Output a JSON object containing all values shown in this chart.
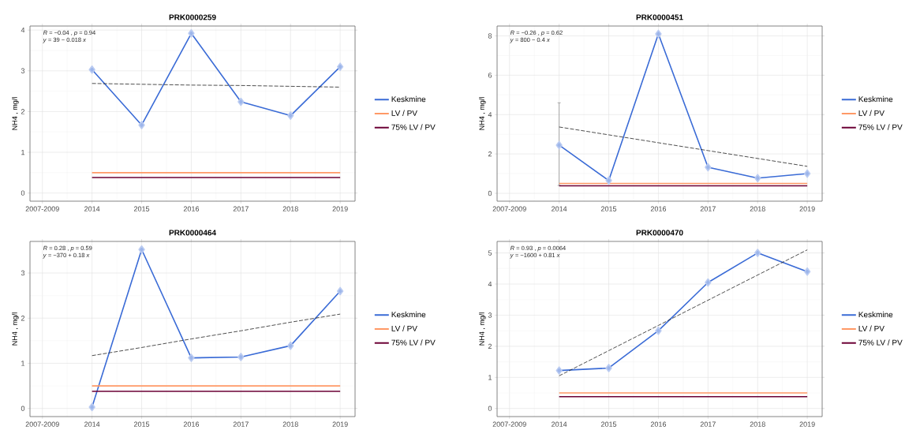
{
  "chart_data": [
    {
      "type": "line",
      "title": "PRK0000259",
      "ylabel": "NH4 , mg/l",
      "categories": [
        "2007-2009",
        "2014",
        "2015",
        "2016",
        "2017",
        "2018",
        "2019"
      ],
      "ylim": [
        -0.2,
        4.1
      ],
      "yticks": [
        0,
        1,
        2,
        3,
        4
      ],
      "grid": true,
      "legend": "right",
      "annotations": [
        "*R* = −0.04 , *p* = 0.94",
        "*y* = 39 − 0.018 *x*"
      ],
      "series": [
        {
          "name": "Keskmine",
          "color": "#3a6bd6",
          "marker": "diamond",
          "values": [
            null,
            3.03,
            1.67,
            3.92,
            2.24,
            1.9,
            3.1
          ]
        },
        {
          "name": "LV / PV",
          "color": "#ff9966",
          "values": [
            null,
            0.5,
            0.5,
            0.5,
            0.5,
            0.5,
            0.5
          ]
        },
        {
          "name": "75% LV / PV",
          "color": "#6b0035",
          "values": [
            null,
            0.38,
            0.38,
            0.38,
            0.38,
            0.38,
            0.38
          ]
        },
        {
          "color": "#222222",
          "line_style": "dashed",
          "values": [
            null,
            2.69,
            2.67,
            2.65,
            2.64,
            2.62,
            2.6
          ]
        }
      ]
    },
    {
      "type": "line",
      "title": "PRK0000451",
      "ylabel": "NH4 , mg/l",
      "categories": [
        "2007-2009",
        "2014",
        "2015",
        "2016",
        "2017",
        "2018",
        "2019"
      ],
      "ylim": [
        -0.4,
        8.5
      ],
      "yticks": [
        0,
        2,
        4,
        6,
        8
      ],
      "grid": true,
      "legend": "right",
      "annotations": [
        "*R* = −0.26 , *p* = 0.62",
        "*y* = 800 − 0.4 *x*"
      ],
      "series": [
        {
          "name": "Keskmine",
          "color": "#3a6bd6",
          "marker": "diamond",
          "values": [
            null,
            2.45,
            0.65,
            8.1,
            1.32,
            0.77,
            1.0
          ],
          "errors": [
            null,
            [
              0.4,
              4.6
            ],
            null,
            null,
            null,
            null,
            null
          ]
        },
        {
          "name": "LV / PV",
          "color": "#ff9966",
          "values": [
            null,
            0.5,
            0.5,
            0.5,
            0.5,
            0.5,
            0.5
          ]
        },
        {
          "name": "75% LV / PV",
          "color": "#6b0035",
          "values": [
            null,
            0.38,
            0.38,
            0.38,
            0.38,
            0.38,
            0.38
          ]
        },
        {
          "color": "#222222",
          "line_style": "dashed",
          "values": [
            null,
            3.37,
            2.97,
            2.57,
            2.17,
            1.77,
            1.37
          ]
        }
      ]
    },
    {
      "type": "line",
      "title": "PRK0000464",
      "ylabel": "NH4 , mg/l",
      "categories": [
        "2007-2009",
        "2014",
        "2015",
        "2016",
        "2017",
        "2018",
        "2019"
      ],
      "ylim": [
        -0.18,
        3.7
      ],
      "yticks": [
        0,
        1,
        2,
        3
      ],
      "grid": true,
      "legend": "right",
      "annotations": [
        "*R* = 0.28 , *p* = 0.59",
        "*y* = −370 + 0.18 *x*"
      ],
      "series": [
        {
          "name": "Keskmine",
          "color": "#3a6bd6",
          "marker": "diamond",
          "values": [
            null,
            0.03,
            3.52,
            1.12,
            1.14,
            1.39,
            2.6
          ]
        },
        {
          "name": "LV / PV",
          "color": "#ff9966",
          "values": [
            null,
            0.5,
            0.5,
            0.5,
            0.5,
            0.5,
            0.5
          ]
        },
        {
          "name": "75% LV / PV",
          "color": "#6b0035",
          "values": [
            null,
            0.38,
            0.38,
            0.38,
            0.38,
            0.38,
            0.38
          ]
        },
        {
          "color": "#222222",
          "line_style": "dashed",
          "values": [
            null,
            1.17,
            1.35,
            1.54,
            1.72,
            1.91,
            2.09
          ]
        }
      ]
    },
    {
      "type": "line",
      "title": "PRK0000470",
      "ylabel": "NH4 , mg/l",
      "categories": [
        "2007-2009",
        "2014",
        "2015",
        "2016",
        "2017",
        "2018",
        "2019"
      ],
      "ylim": [
        -0.26,
        5.37
      ],
      "yticks": [
        0,
        1,
        2,
        3,
        4,
        5
      ],
      "grid": true,
      "legend": "right",
      "annotations": [
        "*R* = 0.93 , *p* = 0.0064",
        "*y* = −1600 + 0.81 *x*"
      ],
      "series": [
        {
          "name": "Keskmine",
          "color": "#3a6bd6",
          "marker": "diamond",
          "values": [
            null,
            1.22,
            1.3,
            2.5,
            4.05,
            5.0,
            4.4
          ]
        },
        {
          "name": "LV / PV",
          "color": "#ff9966",
          "values": [
            null,
            0.5,
            0.5,
            0.5,
            0.5,
            0.5,
            0.5
          ]
        },
        {
          "name": "75% LV / PV",
          "color": "#6b0035",
          "values": [
            null,
            0.38,
            0.38,
            0.38,
            0.38,
            0.38,
            0.38
          ]
        },
        {
          "color": "#222222",
          "line_style": "dashed",
          "values": [
            null,
            1.05,
            1.86,
            2.67,
            3.48,
            4.29,
            5.1
          ]
        }
      ]
    }
  ]
}
